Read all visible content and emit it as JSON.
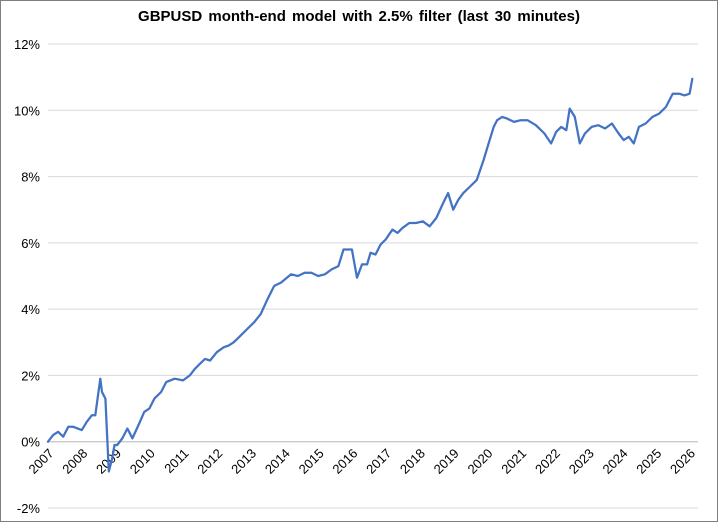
{
  "chart_data": {
    "type": "line",
    "title": "GBPUSD month-end  model  with 2.5% filter  (last  30 minutes)",
    "xlabel": "",
    "ylabel": "",
    "xlim": [
      2007.0,
      2026.25
    ],
    "ylim": [
      -2,
      12
    ],
    "y_ticks": [
      "-2%",
      "0%",
      "2%",
      "4%",
      "6%",
      "8%",
      "10%",
      "12%"
    ],
    "y_tick_values": [
      -2,
      0,
      2,
      4,
      6,
      8,
      10,
      12
    ],
    "x_ticks": [
      "2007",
      "2008",
      "2009",
      "2010",
      "2011",
      "2012",
      "2013",
      "2014",
      "2015",
      "2016",
      "2017",
      "2018",
      "2019",
      "2020",
      "2021",
      "2022",
      "2023",
      "2024",
      "2025",
      "2026"
    ],
    "grid": "horizontal",
    "line_color": "#4472c4",
    "series": [
      {
        "x": [
          2007.0,
          2007.15,
          2007.3,
          2007.45,
          2007.6,
          2007.75,
          2008.0,
          2008.15,
          2008.3,
          2008.4,
          2008.55,
          2008.6,
          2008.7,
          2008.8,
          2008.9,
          2008.97,
          2009.05,
          2009.2,
          2009.35,
          2009.5,
          2009.7,
          2009.85,
          2010.0,
          2010.15,
          2010.35,
          2010.5,
          2010.75,
          2011.0,
          2011.2,
          2011.35,
          2011.5,
          2011.65,
          2011.8,
          2012.0,
          2012.2,
          2012.35,
          2012.5,
          2012.7,
          2012.9,
          2013.1,
          2013.3,
          2013.5,
          2013.7,
          2013.9,
          2014.2,
          2014.4,
          2014.6,
          2014.8,
          2015.0,
          2015.2,
          2015.4,
          2015.6,
          2015.75,
          2016.0,
          2016.15,
          2016.3,
          2016.45,
          2016.55,
          2016.7,
          2016.85,
          2017.0,
          2017.2,
          2017.35,
          2017.5,
          2017.7,
          2017.9,
          2018.1,
          2018.3,
          2018.5,
          2018.7,
          2018.85,
          2019.0,
          2019.15,
          2019.3,
          2019.5,
          2019.7,
          2019.9,
          2020.05,
          2020.2,
          2020.3,
          2020.45,
          2020.6,
          2020.8,
          2021.0,
          2021.2,
          2021.45,
          2021.7,
          2021.9,
          2022.05,
          2022.2,
          2022.35,
          2022.45,
          2022.6,
          2022.75,
          2022.9,
          2023.1,
          2023.3,
          2023.5,
          2023.7,
          2023.9,
          2024.05,
          2024.2,
          2024.35,
          2024.5,
          2024.7,
          2024.9,
          2025.1,
          2025.3,
          2025.5,
          2025.7,
          2025.85,
          2026.0,
          2026.08
        ],
        "y": [
          0.0,
          0.2,
          0.3,
          0.15,
          0.45,
          0.45,
          0.35,
          0.6,
          0.8,
          0.8,
          1.9,
          1.5,
          1.3,
          -0.9,
          -0.5,
          -0.1,
          -0.1,
          0.1,
          0.4,
          0.1,
          0.55,
          0.9,
          1.0,
          1.3,
          1.5,
          1.8,
          1.9,
          1.85,
          2.0,
          2.2,
          2.35,
          2.5,
          2.45,
          2.7,
          2.85,
          2.9,
          3.0,
          3.2,
          3.4,
          3.6,
          3.85,
          4.3,
          4.7,
          4.8,
          5.05,
          5.0,
          5.1,
          5.1,
          5.0,
          5.05,
          5.2,
          5.3,
          5.8,
          5.8,
          4.95,
          5.35,
          5.35,
          5.7,
          5.65,
          5.95,
          6.1,
          6.4,
          6.3,
          6.45,
          6.6,
          6.6,
          6.65,
          6.5,
          6.75,
          7.2,
          7.5,
          7.0,
          7.3,
          7.5,
          7.7,
          7.9,
          8.5,
          9.0,
          9.5,
          9.7,
          9.8,
          9.75,
          9.65,
          9.7,
          9.7,
          9.55,
          9.3,
          9.0,
          9.35,
          9.5,
          9.4,
          10.05,
          9.8,
          9.0,
          9.3,
          9.5,
          9.55,
          9.45,
          9.6,
          9.3,
          9.1,
          9.2,
          9.0,
          9.5,
          9.6,
          9.8,
          9.9,
          10.1,
          10.5,
          10.5,
          10.45,
          10.5,
          10.95
        ]
      }
    ]
  }
}
